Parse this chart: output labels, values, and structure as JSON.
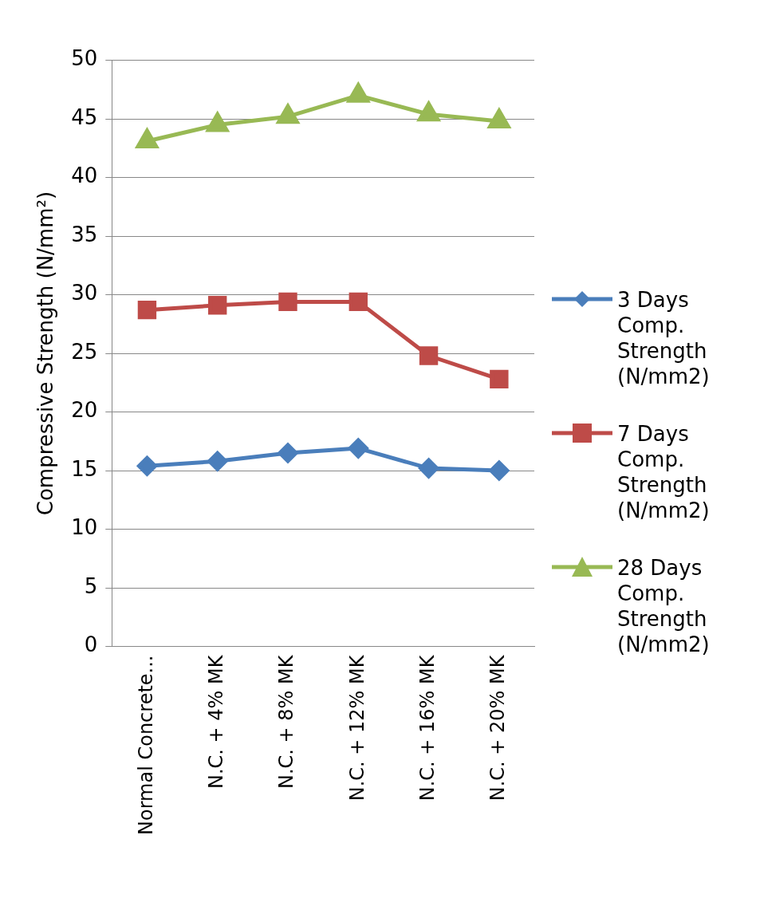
{
  "chart_data": {
    "type": "line",
    "ylabel": "Compressive Strength (N/mm²)",
    "categories": [
      "Normal Concrete...",
      "N.C. + 4% MK",
      "N.C. + 8% MK",
      "N.C. + 12% MK",
      "N.C. + 16% MK",
      "N.C. + 20% MK"
    ],
    "series": [
      {
        "name": "3 Days Comp. Strength (N/mm2)",
        "color": "#4a7ebb",
        "marker": "diamond",
        "values": [
          15.4,
          15.8,
          16.5,
          16.9,
          15.2,
          15.0
        ]
      },
      {
        "name": "7 Days Comp. Strength (N/mm2)",
        "color": "#be4b48",
        "marker": "square",
        "values": [
          28.7,
          29.1,
          29.4,
          29.4,
          24.8,
          22.8
        ]
      },
      {
        "name": "28 Days Comp. Strength (N/mm2)",
        "color": "#98b954",
        "marker": "triangle",
        "values": [
          43.1,
          44.5,
          45.2,
          47.0,
          45.4,
          44.8
        ]
      }
    ],
    "ylim": [
      0,
      50
    ],
    "yticks": [
      0,
      5,
      10,
      15,
      20,
      25,
      30,
      35,
      40,
      45,
      50
    ],
    "grid": "y",
    "legend": "right",
    "line_style": "solid"
  }
}
